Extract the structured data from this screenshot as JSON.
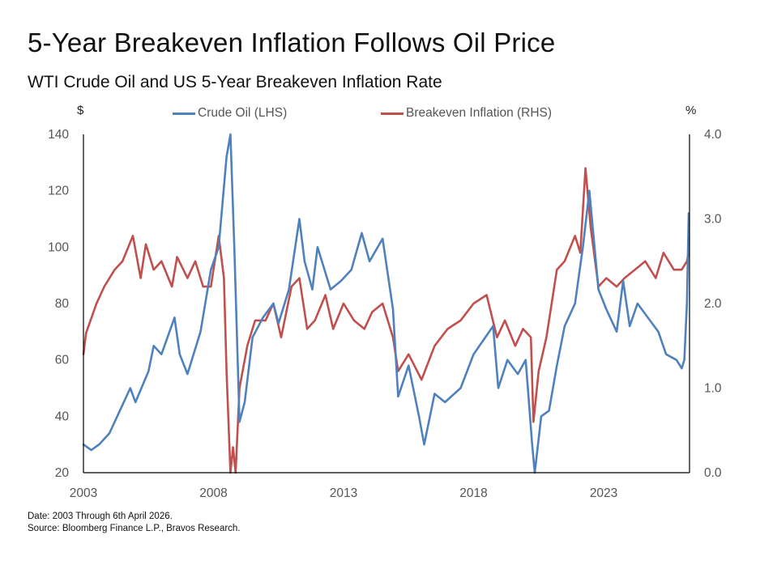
{
  "title": "5-Year Breakeven Inflation Follows Oil Price",
  "subtitle": "WTI Crude Oil and US 5-Year Breakeven Inflation Rate",
  "left_unit": "$",
  "right_unit": "%",
  "footer": {
    "date_note": "Date: 2003 Through 6th April 2026.",
    "source": "Source: Bloomberg Finance L.P., Bravos Research."
  },
  "colors": {
    "oil": "#4f81bd",
    "breakeven": "#c0504d",
    "axis": "#000000"
  },
  "chart_data": {
    "type": "line",
    "title": "5-Year Breakeven Inflation Follows Oil Price",
    "subtitle": "WTI Crude Oil and US 5-Year Breakeven Inflation Rate",
    "legend_placement": "top-center",
    "grid": false,
    "x_range": [
      2003,
      2026.3
    ],
    "x_ticks": [
      2003,
      2008,
      2013,
      2018,
      2023
    ],
    "x_tick_labels": [
      "2003",
      "2008",
      "2013",
      "2018",
      "2023"
    ],
    "y_left": {
      "unit": "$",
      "range": [
        20,
        140
      ],
      "ticks": [
        20,
        40,
        60,
        80,
        100,
        120,
        140
      ]
    },
    "y_right": {
      "unit": "%",
      "range": [
        0,
        4
      ],
      "ticks": [
        "0.0",
        "1.0",
        "2.0",
        "3.0",
        "4.0"
      ]
    },
    "series": [
      {
        "name": "Crude Oil (LHS)",
        "axis": "left",
        "x": [
          2003.0,
          2003.3,
          2003.6,
          2004.0,
          2004.4,
          2004.8,
          2005.0,
          2005.5,
          2005.7,
          2006.0,
          2006.5,
          2006.7,
          2007.0,
          2007.5,
          2007.9,
          2008.2,
          2008.5,
          2008.65,
          2008.8,
          2009.0,
          2009.2,
          2009.5,
          2009.9,
          2010.3,
          2010.5,
          2010.9,
          2011.3,
          2011.5,
          2011.8,
          2012.0,
          2012.5,
          2012.9,
          2013.3,
          2013.7,
          2014.0,
          2014.5,
          2014.9,
          2015.1,
          2015.5,
          2015.9,
          2016.1,
          2016.5,
          2016.9,
          2017.5,
          2018.0,
          2018.75,
          2018.95,
          2019.3,
          2019.7,
          2020.0,
          2020.25,
          2020.35,
          2020.6,
          2020.9,
          2021.2,
          2021.5,
          2021.9,
          2022.2,
          2022.45,
          2022.8,
          2023.1,
          2023.5,
          2023.75,
          2024.0,
          2024.3,
          2024.7,
          2025.1,
          2025.4,
          2025.8,
          2026.0,
          2026.1,
          2026.2,
          2026.27
        ],
        "values": [
          30,
          28,
          30,
          34,
          42,
          50,
          45,
          56,
          65,
          62,
          75,
          62,
          55,
          70,
          92,
          100,
          132,
          140,
          100,
          38,
          45,
          68,
          75,
          80,
          73,
          85,
          110,
          95,
          85,
          100,
          85,
          88,
          92,
          105,
          95,
          103,
          78,
          47,
          58,
          40,
          30,
          48,
          45,
          50,
          62,
          72,
          50,
          60,
          55,
          60,
          30,
          20,
          40,
          42,
          58,
          72,
          80,
          100,
          120,
          85,
          78,
          70,
          88,
          72,
          80,
          75,
          70,
          62,
          60,
          57,
          60,
          80,
          112
        ]
      },
      {
        "name": "Breakeven Inflation (RHS)",
        "axis": "right",
        "x": [
          2003.0,
          2003.1,
          2003.5,
          2003.8,
          2004.2,
          2004.5,
          2004.9,
          2005.2,
          2005.4,
          2005.7,
          2006.0,
          2006.4,
          2006.6,
          2007.0,
          2007.3,
          2007.6,
          2007.9,
          2008.2,
          2008.4,
          2008.5,
          2008.65,
          2008.75,
          2008.85,
          2009.0,
          2009.3,
          2009.6,
          2010.0,
          2010.3,
          2010.6,
          2011.0,
          2011.3,
          2011.6,
          2011.9,
          2012.3,
          2012.6,
          2013.0,
          2013.4,
          2013.8,
          2014.1,
          2014.5,
          2014.9,
          2015.1,
          2015.5,
          2016.0,
          2016.5,
          2017.0,
          2017.5,
          2018.0,
          2018.5,
          2018.9,
          2019.2,
          2019.6,
          2019.9,
          2020.2,
          2020.3,
          2020.5,
          2020.8,
          2021.2,
          2021.5,
          2021.9,
          2022.1,
          2022.3,
          2022.5,
          2022.8,
          2023.1,
          2023.5,
          2023.8,
          2024.2,
          2024.6,
          2025.0,
          2025.3,
          2025.7,
          2026.0,
          2026.2,
          2026.27
        ],
        "values": [
          1.4,
          1.65,
          2.0,
          2.2,
          2.4,
          2.5,
          2.8,
          2.3,
          2.7,
          2.4,
          2.5,
          2.2,
          2.55,
          2.3,
          2.5,
          2.2,
          2.2,
          2.8,
          2.3,
          1.2,
          0.0,
          0.3,
          0.0,
          1.0,
          1.5,
          1.8,
          1.8,
          2.0,
          1.6,
          2.2,
          2.3,
          1.7,
          1.8,
          2.1,
          1.7,
          2.0,
          1.8,
          1.7,
          1.9,
          2.0,
          1.6,
          1.2,
          1.4,
          1.1,
          1.5,
          1.7,
          1.8,
          2.0,
          2.1,
          1.6,
          1.8,
          1.5,
          1.7,
          1.6,
          0.6,
          1.2,
          1.6,
          2.4,
          2.5,
          2.8,
          2.6,
          3.6,
          2.9,
          2.2,
          2.3,
          2.2,
          2.3,
          2.4,
          2.5,
          2.3,
          2.6,
          2.4,
          2.4,
          2.5,
          2.6
        ]
      }
    ]
  }
}
